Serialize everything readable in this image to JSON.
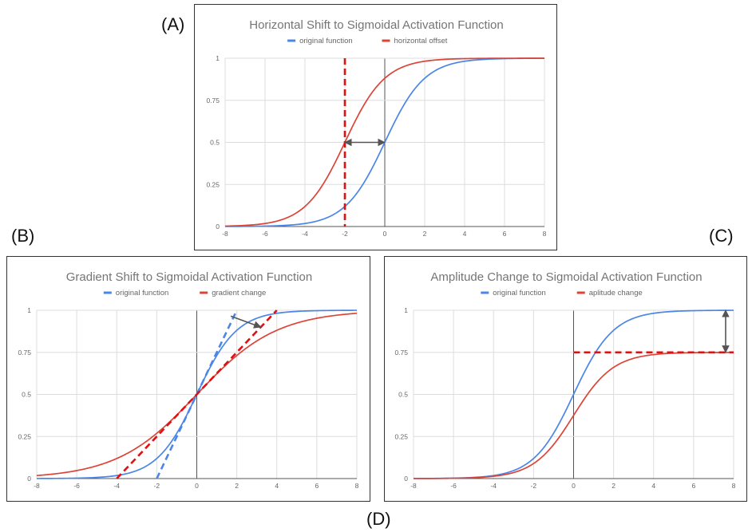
{
  "panels": {
    "a": "(A)",
    "b": "(B)",
    "c": "(C)"
  },
  "figure_caption": "(D)",
  "colors": {
    "original": "#4a86e8",
    "modified": "#db4437",
    "dashed": "#e01010",
    "arrow": "#555555",
    "grid": "#dddddd",
    "axis": "#555555",
    "title": "#757575",
    "tick": "#666666"
  },
  "chart_data": [
    {
      "id": "a",
      "type": "line",
      "title": "Horizontal Shift to Sigmoidal Activation Function",
      "xlim": [
        -8,
        8
      ],
      "ylim": [
        0,
        1
      ],
      "xticks": [
        -8,
        -6,
        -4,
        -2,
        0,
        2,
        4,
        6,
        8
      ],
      "yticks": [
        0,
        0.25,
        0.5,
        0.75,
        1
      ],
      "ytick_labels": [
        "0",
        "0.25",
        "0.5",
        "0.75",
        "1"
      ],
      "grid": true,
      "legend": "top-center",
      "series": [
        {
          "name": "original function",
          "formula": "sigmoid",
          "shift": 0,
          "gain": 1,
          "amplitude": 1,
          "color": "#4a86e8"
        },
        {
          "name": "horizontal offset",
          "formula": "sigmoid",
          "shift": -2,
          "gain": 1,
          "amplitude": 1,
          "color": "#db4437"
        }
      ],
      "annotations": [
        {
          "kind": "vline-dashed",
          "x": -2,
          "y_from": 0,
          "y_to": 1
        },
        {
          "kind": "double-arrow",
          "x1": -2,
          "y1": 0.5,
          "x2": 0,
          "y2": 0.5
        }
      ]
    },
    {
      "id": "b",
      "type": "line",
      "title": "Gradient Shift to Sigmoidal Activation Function",
      "xlim": [
        -8,
        8
      ],
      "ylim": [
        0,
        1
      ],
      "xticks": [
        -8,
        -6,
        -4,
        -2,
        0,
        2,
        4,
        6,
        8
      ],
      "yticks": [
        0,
        0.25,
        0.5,
        0.75,
        1
      ],
      "ytick_labels": [
        "0",
        "0.25",
        "0.5",
        "0.75",
        "1"
      ],
      "grid": true,
      "legend": "top-center",
      "series": [
        {
          "name": "original function",
          "formula": "sigmoid",
          "shift": 0,
          "gain": 1,
          "amplitude": 1,
          "color": "#4a86e8"
        },
        {
          "name": "gradient change",
          "formula": "sigmoid",
          "shift": 0,
          "gain": 0.5,
          "amplitude": 1,
          "color": "#db4437"
        }
      ],
      "annotations": [
        {
          "kind": "line-dashed",
          "color": "#4a86e8",
          "x1": -2,
          "y1": 0,
          "x2": 2,
          "y2": 1
        },
        {
          "kind": "line-dashed",
          "color": "#e01010",
          "x1": -4,
          "y1": 0,
          "x2": 4,
          "y2": 1
        },
        {
          "kind": "arrow",
          "x1": 1.7,
          "y1": 0.965,
          "x2": 3.2,
          "y2": 0.9
        }
      ]
    },
    {
      "id": "c",
      "type": "line",
      "title": "Amplitude Change to Sigmoidal Activation Function",
      "xlim": [
        -8,
        8
      ],
      "ylim": [
        0,
        1
      ],
      "xticks": [
        -8,
        -6,
        -4,
        -2,
        0,
        2,
        4,
        6,
        8
      ],
      "yticks": [
        0,
        0.25,
        0.5,
        0.75,
        1
      ],
      "ytick_labels": [
        "0",
        "0.25",
        "0.5",
        "0.75",
        "1"
      ],
      "grid": true,
      "legend": "top-center",
      "series": [
        {
          "name": "original function",
          "formula": "sigmoid",
          "shift": 0,
          "gain": 1,
          "amplitude": 1,
          "color": "#4a86e8"
        },
        {
          "name": "aplitude change",
          "formula": "sigmoid",
          "shift": 0,
          "gain": 1,
          "amplitude": 0.75,
          "color": "#db4437"
        }
      ],
      "annotations": [
        {
          "kind": "hline-dashed",
          "y": 0.75,
          "x_from": 0,
          "x_to": 8
        },
        {
          "kind": "double-arrow",
          "x1": 7.6,
          "y1": 1,
          "x2": 7.6,
          "y2": 0.75
        }
      ]
    }
  ]
}
